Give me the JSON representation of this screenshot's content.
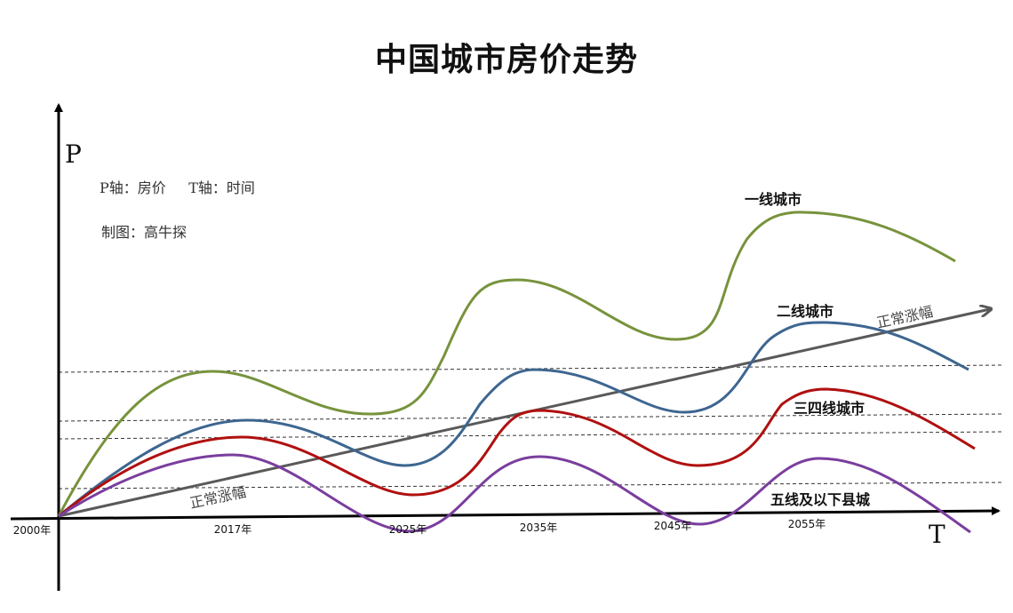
{
  "title": "中国城市房价走势",
  "notes": {
    "axes_desc": "P轴：房价     T轴：时间",
    "credit": "制图：高牛探"
  },
  "chart_data": {
    "type": "line",
    "ylabel": "P",
    "xlabel": "T",
    "x_ticks": [
      "2000年",
      "2017年",
      "2025年",
      "2035年",
      "2045年",
      "2055年"
    ],
    "grid": false,
    "colors": {
      "一线城市": "#77933c",
      "二线城市": "#3d6690",
      "三四线城市": "#b01010",
      "五线及以下县城": "#7a3e9e",
      "正常涨幅": "#595959"
    },
    "series": [
      {
        "name": "一线城市"
      },
      {
        "name": "二线城市"
      },
      {
        "name": "三四线城市"
      },
      {
        "name": "五线及以下县城"
      },
      {
        "name": "正常涨幅"
      }
    ],
    "trend_labels": [
      "正常涨幅",
      "正常涨幅"
    ]
  }
}
